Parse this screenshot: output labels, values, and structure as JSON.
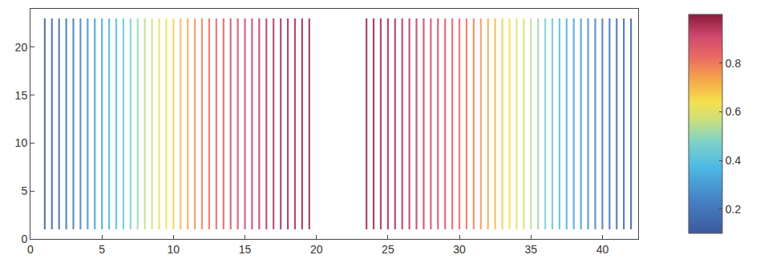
{
  "chart_data": {
    "type": "vertical_lines",
    "x": [
      1,
      1.5,
      2,
      2.5,
      3,
      3.5,
      4,
      4.5,
      5,
      5.5,
      6,
      6.5,
      7,
      7.5,
      8,
      8.5,
      9,
      9.5,
      10,
      10.5,
      11,
      11.5,
      12,
      12.5,
      13,
      13.5,
      14,
      14.5,
      15,
      15.5,
      16,
      16.5,
      17,
      17.5,
      18,
      18.5,
      19,
      19.5,
      23.5,
      24,
      24.5,
      25,
      25.5,
      26,
      26.5,
      27,
      27.5,
      28,
      28.5,
      29,
      29.5,
      30,
      30.5,
      31,
      31.5,
      32,
      32.5,
      33,
      33.5,
      34,
      34.5,
      35,
      35.5,
      36,
      36.5,
      37,
      37.5,
      38,
      38.5,
      39,
      39.5,
      40,
      40.5,
      41,
      41.5,
      42
    ],
    "values": [
      0.12,
      0.14,
      0.16,
      0.18,
      0.21,
      0.24,
      0.27,
      0.3,
      0.33,
      0.36,
      0.39,
      0.43,
      0.47,
      0.51,
      0.55,
      0.58,
      0.61,
      0.64,
      0.67,
      0.7,
      0.73,
      0.76,
      0.79,
      0.82,
      0.84,
      0.86,
      0.88,
      0.9,
      0.91,
      0.92,
      0.93,
      0.94,
      0.95,
      0.96,
      0.97,
      0.97,
      0.98,
      0.98,
      0.98,
      0.98,
      0.97,
      0.97,
      0.96,
      0.95,
      0.94,
      0.93,
      0.92,
      0.91,
      0.9,
      0.88,
      0.86,
      0.84,
      0.82,
      0.79,
      0.76,
      0.73,
      0.7,
      0.67,
      0.64,
      0.61,
      0.58,
      0.55,
      0.51,
      0.47,
      0.43,
      0.39,
      0.36,
      0.33,
      0.3,
      0.27,
      0.24,
      0.21,
      0.18,
      0.16,
      0.14,
      0.12
    ],
    "ybounds": [
      1,
      23
    ],
    "xlim": [
      0,
      42.5
    ],
    "xticks": [
      0,
      5,
      10,
      15,
      20,
      25,
      30,
      35,
      40
    ],
    "ylim": [
      0,
      24
    ],
    "yticks": [
      0,
      5,
      10,
      15,
      20
    ],
    "colorbar": {
      "range": [
        0.1,
        1
      ],
      "ticks": [
        0.2,
        0.4,
        0.6,
        0.8
      ]
    },
    "grid": false
  }
}
